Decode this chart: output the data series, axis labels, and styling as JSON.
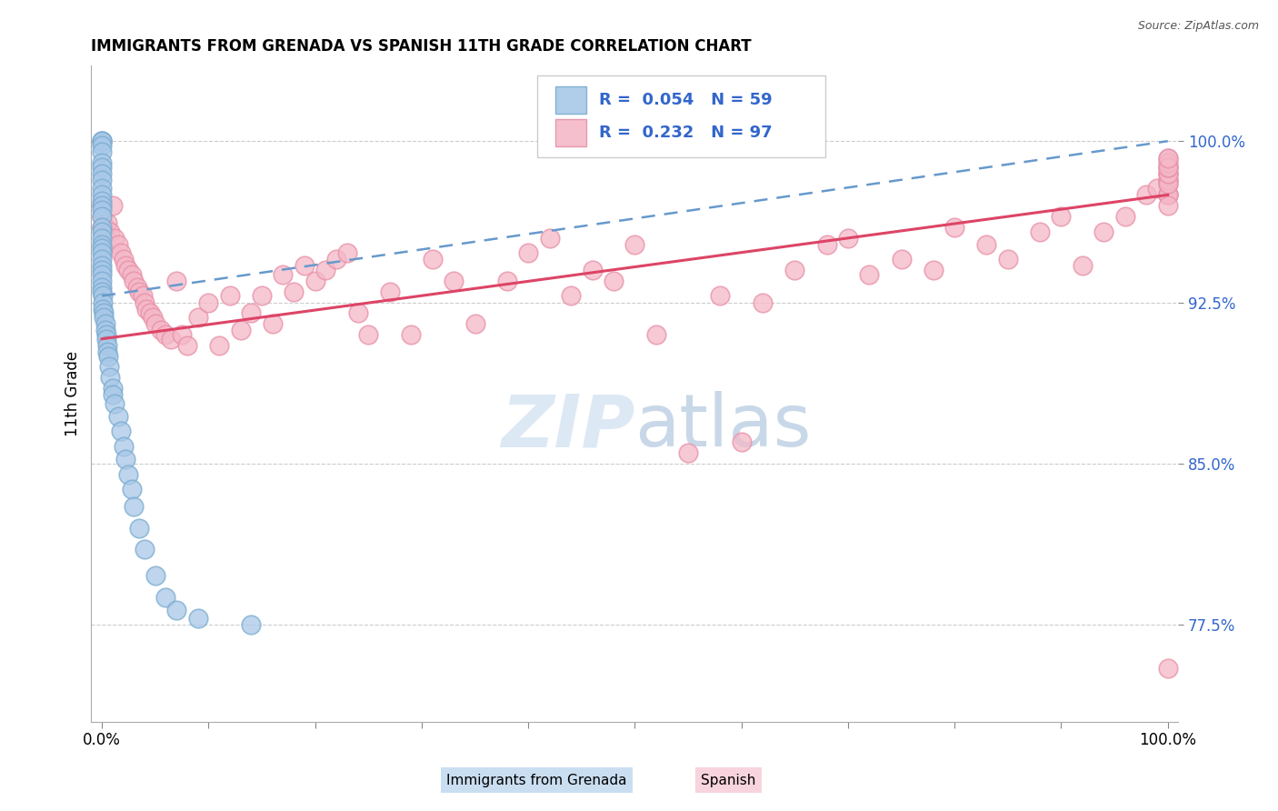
{
  "title": "IMMIGRANTS FROM GRENADA VS SPANISH 11TH GRADE CORRELATION CHART",
  "source_text": "Source: ZipAtlas.com",
  "ylabel": "11th Grade",
  "xlim": [
    -0.01,
    1.01
  ],
  "ylim": [
    0.73,
    1.035
  ],
  "ytick_labels": [
    "77.5%",
    "85.0%",
    "92.5%",
    "100.0%"
  ],
  "ytick_values": [
    0.775,
    0.85,
    0.925,
    1.0
  ],
  "xtick_labels": [
    "0.0%",
    "",
    "",
    "",
    "",
    "",
    "",
    "",
    "",
    "",
    "100.0%"
  ],
  "xtick_values": [
    0.0,
    0.1,
    0.2,
    0.3,
    0.4,
    0.5,
    0.6,
    0.7,
    0.8,
    0.9,
    1.0
  ],
  "legend_label1": "Immigrants from Grenada",
  "legend_label2": "Spanish",
  "R1": 0.054,
  "N1": 59,
  "R2": 0.232,
  "N2": 97,
  "blue_scatter_color": "#a8c8e8",
  "blue_scatter_edge": "#7aabcf",
  "pink_scatter_color": "#f4b8c8",
  "pink_scatter_edge": "#e890a8",
  "blue_line_color": "#6699cc",
  "pink_line_color": "#dd4466",
  "grid_color": "#cccccc",
  "watermark_color": "#dde8f5",
  "blue_label_color": "#3366cc",
  "blue_x": [
    0.0,
    0.0,
    0.0,
    0.0,
    0.0,
    0.0,
    0.0,
    0.0,
    0.0,
    0.0,
    0.0,
    0.0,
    0.0,
    0.0,
    0.0,
    0.0,
    0.0,
    0.0,
    0.0,
    0.0,
    0.0,
    0.0,
    0.0,
    0.0,
    0.0,
    0.0,
    0.0,
    0.0,
    0.001,
    0.001,
    0.001,
    0.002,
    0.002,
    0.003,
    0.003,
    0.004,
    0.004,
    0.005,
    0.005,
    0.006,
    0.007,
    0.008,
    0.01,
    0.01,
    0.012,
    0.015,
    0.018,
    0.02,
    0.022,
    0.025,
    0.028,
    0.03,
    0.035,
    0.04,
    0.05,
    0.06,
    0.07,
    0.09,
    0.14
  ],
  "blue_y": [
    1.0,
    1.0,
    1.0,
    0.998,
    0.995,
    0.99,
    0.988,
    0.985,
    0.982,
    0.978,
    0.975,
    0.972,
    0.97,
    0.968,
    0.965,
    0.96,
    0.958,
    0.955,
    0.952,
    0.95,
    0.948,
    0.945,
    0.942,
    0.94,
    0.938,
    0.935,
    0.932,
    0.93,
    0.928,
    0.925,
    0.922,
    0.92,
    0.918,
    0.915,
    0.912,
    0.91,
    0.908,
    0.905,
    0.902,
    0.9,
    0.895,
    0.89,
    0.885,
    0.882,
    0.878,
    0.872,
    0.865,
    0.858,
    0.852,
    0.845,
    0.838,
    0.83,
    0.82,
    0.81,
    0.798,
    0.788,
    0.782,
    0.778,
    0.775
  ],
  "pink_x": [
    0.0,
    0.0,
    0.0,
    0.003,
    0.005,
    0.008,
    0.01,
    0.012,
    0.015,
    0.018,
    0.02,
    0.022,
    0.025,
    0.028,
    0.03,
    0.033,
    0.035,
    0.038,
    0.04,
    0.042,
    0.045,
    0.048,
    0.05,
    0.055,
    0.06,
    0.065,
    0.07,
    0.075,
    0.08,
    0.09,
    0.1,
    0.11,
    0.12,
    0.13,
    0.14,
    0.15,
    0.16,
    0.17,
    0.18,
    0.19,
    0.2,
    0.21,
    0.22,
    0.23,
    0.24,
    0.25,
    0.27,
    0.29,
    0.31,
    0.33,
    0.35,
    0.38,
    0.4,
    0.42,
    0.44,
    0.46,
    0.48,
    0.5,
    0.52,
    0.55,
    0.58,
    0.6,
    0.62,
    0.65,
    0.68,
    0.7,
    0.72,
    0.75,
    0.78,
    0.8,
    0.83,
    0.85,
    0.88,
    0.9,
    0.92,
    0.94,
    0.96,
    0.98,
    0.99,
    1.0,
    1.0,
    1.0,
    1.0,
    1.0,
    1.0,
    1.0,
    1.0,
    1.0,
    1.0,
    1.0,
    1.0,
    1.0,
    1.0,
    1.0,
    1.0,
    1.0,
    1.0
  ],
  "pink_y": [
    0.97,
    0.965,
    0.96,
    0.96,
    0.962,
    0.958,
    0.97,
    0.955,
    0.952,
    0.948,
    0.945,
    0.942,
    0.94,
    0.938,
    0.935,
    0.932,
    0.93,
    0.928,
    0.925,
    0.922,
    0.92,
    0.918,
    0.915,
    0.912,
    0.91,
    0.908,
    0.935,
    0.91,
    0.905,
    0.918,
    0.925,
    0.905,
    0.928,
    0.912,
    0.92,
    0.928,
    0.915,
    0.938,
    0.93,
    0.942,
    0.935,
    0.94,
    0.945,
    0.948,
    0.92,
    0.91,
    0.93,
    0.91,
    0.945,
    0.935,
    0.915,
    0.935,
    0.948,
    0.955,
    0.928,
    0.94,
    0.935,
    0.952,
    0.91,
    0.855,
    0.928,
    0.86,
    0.925,
    0.94,
    0.952,
    0.955,
    0.938,
    0.945,
    0.94,
    0.96,
    0.952,
    0.945,
    0.958,
    0.965,
    0.942,
    0.958,
    0.965,
    0.975,
    0.978,
    0.975,
    0.98,
    0.982,
    0.975,
    0.985,
    0.988,
    0.975,
    0.982,
    0.985,
    0.98,
    0.992,
    0.985,
    0.988,
    0.99,
    0.988,
    0.992,
    0.755,
    0.97
  ],
  "blue_line_x0": 0.0,
  "blue_line_x1": 1.0,
  "blue_line_y0": 0.928,
  "blue_line_y1": 1.0,
  "pink_line_x0": 0.0,
  "pink_line_x1": 1.0,
  "pink_line_y0": 0.908,
  "pink_line_y1": 0.975
}
